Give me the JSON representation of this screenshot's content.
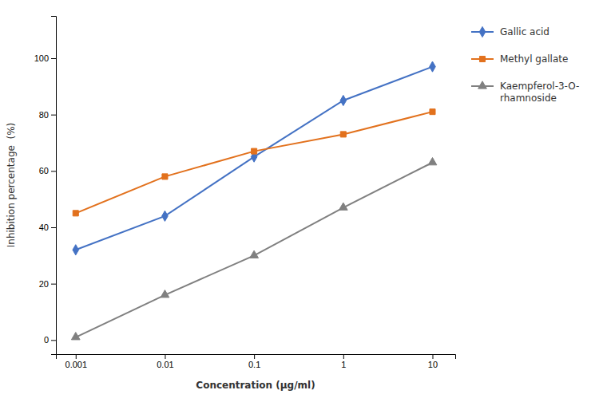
{
  "chart_data": {
    "type": "line",
    "x": [
      0.001,
      0.01,
      0.1,
      1,
      10
    ],
    "series": [
      {
        "name": "Gallic acid",
        "color": "#4472C4",
        "marker": "diamond",
        "line_style": "solid",
        "values": [
          32,
          44,
          65,
          85,
          97
        ]
      },
      {
        "name": "Methyl gallate",
        "color": "#E2711D",
        "marker": "square",
        "line_style": "solid",
        "values": [
          45,
          58,
          67,
          73,
          81
        ]
      },
      {
        "name": "Kaempferol-3-O-\nrhamnoside",
        "color": "#808080",
        "marker": "triangle",
        "line_style": "solid",
        "values": [
          1,
          16,
          30,
          47,
          63
        ]
      }
    ],
    "xlabel": "Concentration (μg/ml)",
    "ylabel": "Inhibition percentage  (%)",
    "xlim": [
      0.0006,
      18
    ],
    "xticks": [
      0.001,
      0.01,
      0.1,
      1,
      10
    ],
    "ylim": [
      -5,
      115
    ],
    "yticks": [
      0,
      20,
      40,
      60,
      80,
      100
    ],
    "log": "x",
    "grid": false,
    "legend": "right"
  }
}
